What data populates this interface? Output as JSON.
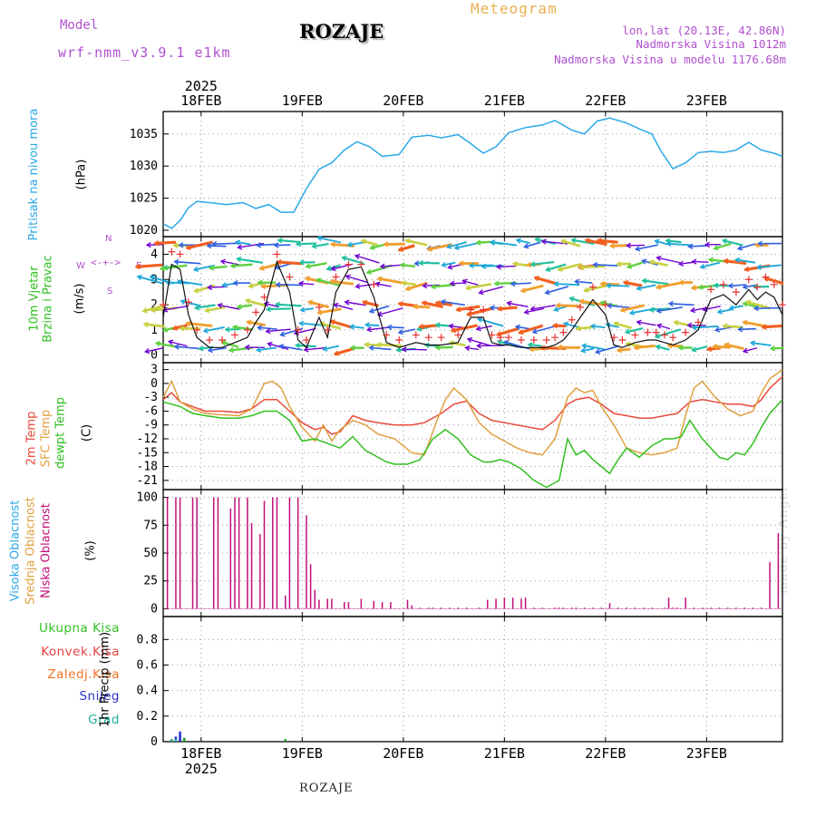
{
  "header": {
    "model_label": "Model",
    "model_run": "wrf-nmm_v3.9.1 e1km",
    "station_title": "ROZAJE",
    "product": "Meteogram",
    "coords": "lon,lat (20.13E, 42.86N)",
    "elevation": "Nadmorska Visina 1012m",
    "model_elevation": "Nadmorska Visina u modelu 1176.68m"
  },
  "footer": {
    "station": "ROZAJE",
    "credit": "made by Angel"
  },
  "colors": {
    "pressure": "#2aa8e8",
    "wind_speed": "#111111",
    "gust": "#e83030",
    "temp_2m": "#e84a3a",
    "temp_sfc": "#e0a040",
    "dewpoint": "#30c020",
    "cloud_high": "#2aa8e8",
    "cloud_mid": "#e0a040",
    "cloud_low": "#c0107a",
    "precip_total": "#20a020",
    "precip_conv": "#e03030",
    "precip_frz": "#f07020",
    "snow": "#3030d0",
    "graupel": "#20b0a0"
  },
  "chart_data": [
    {
      "type": "line",
      "panel": "pressure",
      "time_axis": {
        "year": "2025",
        "day_labels": [
          "18FEB",
          "19FEB",
          "20FEB",
          "21FEB",
          "22FEB",
          "23FEB"
        ],
        "day_start_hours": [
          9,
          33,
          57,
          81,
          105,
          129
        ],
        "hours_range": [
          0,
          147
        ]
      },
      "ylabels": [
        "Pritisak na nivou mora",
        "(hPa)"
      ],
      "yticks": [
        "1020",
        "1025",
        "1030",
        "1035"
      ],
      "ylim": [
        1019,
        1038.5
      ],
      "series": [
        {
          "key": "pressure",
          "hours": [
            0,
            2,
            4,
            6,
            8,
            11,
            15,
            19,
            22,
            25,
            28,
            31,
            34,
            37,
            40,
            43,
            46,
            49,
            52,
            56,
            59,
            63,
            66,
            70,
            73,
            76,
            79,
            82,
            86,
            90,
            93,
            97,
            100,
            103,
            106,
            110,
            113,
            116,
            118,
            121,
            124,
            127,
            130,
            133,
            136,
            139,
            142,
            145,
            147
          ],
          "values": [
            1021,
            1020.3,
            1021.5,
            1023.5,
            1024.5,
            1024.3,
            1024,
            1024.3,
            1023.4,
            1024,
            1022.8,
            1022.8,
            1026.5,
            1029.5,
            1030.5,
            1032.5,
            1033.8,
            1033,
            1031.5,
            1031.8,
            1034.5,
            1034.8,
            1034.4,
            1034.9,
            1033.5,
            1032,
            1033,
            1035.2,
            1036,
            1036.4,
            1037.1,
            1035.6,
            1035,
            1037,
            1037.5,
            1036.7,
            1035.8,
            1035,
            1032.5,
            1029.6,
            1030.5,
            1032.1,
            1032.3,
            1032.1,
            1032.5,
            1033.7,
            1032.5,
            1032,
            1031.5
          ]
        }
      ]
    },
    {
      "type": "line",
      "panel": "wind",
      "ylabels": [
        "10m Vjetar",
        "Brzina i Pravac",
        "(m/s)"
      ],
      "compass": [
        "N",
        "W",
        "E",
        "S"
      ],
      "yticks": [
        "0",
        "1",
        "2",
        "3",
        "4"
      ],
      "ylim": [
        -0.3,
        4.7
      ],
      "series": [
        {
          "key": "wind_speed",
          "hours": [
            0,
            2,
            4,
            6,
            8,
            11,
            14,
            17,
            20,
            22,
            24,
            27,
            30,
            32,
            34,
            37,
            39,
            41,
            44,
            47,
            50,
            53,
            56,
            60,
            63,
            66,
            70,
            73,
            76,
            78,
            80,
            82,
            85,
            88,
            91,
            93,
            95,
            97,
            99,
            102,
            105,
            107,
            109,
            112,
            115,
            117,
            119,
            121,
            124,
            127,
            130,
            133,
            136,
            139,
            141,
            143,
            145,
            147
          ],
          "values": [
            1.5,
            3.6,
            3.4,
            1.6,
            0.7,
            0.3,
            0.3,
            0.5,
            0.7,
            1.3,
            1.8,
            3.7,
            2.5,
            0.6,
            0.3,
            1.5,
            0.7,
            2.5,
            3.4,
            3.5,
            2.3,
            0.5,
            0.3,
            0.5,
            0.4,
            0.4,
            0.5,
            1.5,
            1.5,
            0.5,
            0.4,
            0.4,
            0.3,
            0.3,
            0.3,
            0.4,
            0.6,
            1.0,
            1.5,
            2.2,
            1.6,
            0.4,
            0.3,
            0.5,
            0.6,
            0.6,
            0.5,
            0.4,
            0.6,
            1.0,
            2.2,
            2.4,
            2.0,
            2.6,
            2.2,
            2.5,
            2.3,
            1.6
          ]
        },
        {
          "key": "gust",
          "hours": [
            0,
            2,
            4,
            6,
            8,
            11,
            14,
            17,
            20,
            22,
            24,
            27,
            30,
            32,
            34,
            37,
            39,
            41,
            44,
            47,
            50,
            53,
            56,
            60,
            63,
            66,
            70,
            73,
            76,
            78,
            80,
            82,
            85,
            88,
            91,
            93,
            95,
            97,
            99,
            102,
            105,
            107,
            109,
            112,
            115,
            117,
            119,
            121,
            124,
            127,
            130,
            133,
            136,
            139,
            141,
            143,
            145,
            147
          ],
          "values": [
            2.0,
            4.1,
            4.0,
            2.1,
            1.0,
            0.6,
            0.6,
            0.8,
            1.0,
            1.7,
            2.3,
            4.0,
            3.1,
            1.0,
            0.6,
            1.9,
            1.0,
            3.1,
            3.6,
            3.6,
            2.8,
            0.8,
            0.6,
            0.8,
            0.7,
            0.7,
            0.8,
            1.8,
            1.8,
            0.8,
            0.7,
            0.7,
            0.6,
            0.6,
            0.6,
            0.7,
            0.9,
            1.4,
            1.9,
            2.7,
            2.0,
            0.7,
            0.6,
            0.8,
            0.9,
            0.9,
            0.8,
            0.7,
            0.9,
            1.3,
            2.6,
            2.8,
            2.5,
            3.0,
            2.7,
            3.1,
            2.8,
            2.0
          ]
        }
      ]
    },
    {
      "type": "line",
      "panel": "temperature",
      "ylabels": [
        "2m Temp",
        "SFC Temp",
        "dewpt Temp",
        "(C)"
      ],
      "yticks": [
        "-21",
        "-18",
        "-15",
        "-12",
        "-9",
        "-6",
        "-3",
        "0",
        "3"
      ],
      "ylim": [
        -23,
        4.5
      ],
      "series": [
        {
          "key": "temp_2m",
          "hours": [
            0,
            2,
            4,
            7,
            10,
            14,
            18,
            21,
            24,
            27,
            30,
            33,
            36,
            38,
            40,
            42,
            45,
            48,
            51,
            55,
            59,
            62,
            66,
            69,
            72,
            75,
            78,
            81,
            84,
            87,
            90,
            93,
            96,
            98,
            101,
            104,
            107,
            110,
            113,
            116,
            119,
            122,
            125,
            128,
            131,
            134,
            137,
            140,
            142,
            144,
            147
          ],
          "values": [
            -3.5,
            -2,
            -4,
            -5,
            -6,
            -6,
            -6.3,
            -5.5,
            -3.5,
            -3.5,
            -6,
            -8.5,
            -10,
            -9.5,
            -11,
            -10.5,
            -7,
            -8,
            -8.5,
            -9,
            -9,
            -8.5,
            -6.5,
            -4.5,
            -3.8,
            -6.5,
            -8,
            -8.5,
            -9,
            -9.5,
            -10,
            -8,
            -4.5,
            -3.5,
            -3,
            -4.5,
            -6.5,
            -7,
            -7.5,
            -7.5,
            -7,
            -6.5,
            -4,
            -3.5,
            -4,
            -4.5,
            -4.5,
            -5,
            -3.5,
            -1,
            1.5
          ]
        },
        {
          "key": "temp_sfc",
          "hours": [
            0,
            2,
            4,
            7,
            10,
            14,
            18,
            21,
            24,
            26,
            28,
            30,
            33,
            36,
            38,
            40,
            42,
            45,
            48,
            51,
            55,
            59,
            62,
            65,
            67,
            69,
            72,
            75,
            78,
            81,
            84,
            87,
            90,
            93,
            96,
            98,
            100,
            102,
            104,
            107,
            110,
            113,
            116,
            119,
            122,
            124,
            126,
            128,
            131,
            134,
            137,
            140,
            142,
            144,
            147
          ],
          "values": [
            -3,
            0.5,
            -4,
            -5.5,
            -6.5,
            -6.8,
            -7,
            -5.5,
            0,
            0.5,
            -1,
            -5,
            -9.5,
            -12.5,
            -9,
            -12.5,
            -10,
            -8,
            -9,
            -11,
            -12,
            -15,
            -15.5,
            -8,
            -3.5,
            -1,
            -3.5,
            -8.5,
            -11,
            -12.5,
            -14,
            -15,
            -15.5,
            -12,
            -3,
            -1,
            -2,
            -1.5,
            -5,
            -9,
            -14,
            -15,
            -15.5,
            -15,
            -14,
            -7,
            -1,
            0.5,
            -3,
            -5.5,
            -7,
            -6,
            -2,
            1,
            3
          ]
        },
        {
          "key": "dewpoint",
          "hours": [
            0,
            2,
            4,
            7,
            10,
            14,
            18,
            21,
            24,
            27,
            30,
            33,
            36,
            39,
            42,
            45,
            48,
            51,
            53,
            55,
            58,
            61,
            64,
            67,
            70,
            73,
            76,
            78,
            80,
            82,
            85,
            88,
            91,
            94,
            96,
            98,
            100,
            102,
            104,
            106,
            108,
            110,
            113,
            116,
            119,
            121,
            123,
            125,
            128,
            130,
            132,
            134,
            136,
            138,
            140,
            142,
            144,
            147
          ],
          "values": [
            -4,
            -4.5,
            -5,
            -6.5,
            -7,
            -7.5,
            -7.5,
            -7,
            -6,
            -6,
            -8,
            -12.5,
            -12,
            -13,
            -14,
            -11.5,
            -14.5,
            -16,
            -17,
            -17.5,
            -17.5,
            -16.5,
            -12,
            -10,
            -12,
            -15.5,
            -17,
            -17,
            -16.5,
            -17,
            -18.5,
            -21,
            -22.5,
            -21,
            -12,
            -15.5,
            -14.5,
            -16.5,
            -18,
            -19.5,
            -16.5,
            -14,
            -16,
            -13.5,
            -12,
            -12,
            -11.5,
            -8,
            -12,
            -14,
            -16,
            -16.5,
            -15,
            -15.5,
            -13,
            -9.5,
            -6.5,
            -3.5
          ]
        }
      ]
    },
    {
      "type": "bar",
      "panel": "cloud",
      "ylabels": [
        "Visoka Oblacnost",
        "Srednja Oblacnost",
        "Niska Oblacnost",
        "(%)"
      ],
      "yticks": [
        "0",
        "25",
        "50",
        "75",
        "100"
      ],
      "ylim": [
        -7,
        107
      ],
      "series": [
        {
          "key": "cloud_low",
          "hours": [
            1,
            3,
            4,
            5,
            7,
            8,
            10,
            12,
            13,
            14,
            16,
            17,
            18,
            20,
            21,
            23,
            24,
            26,
            27,
            29,
            30,
            32,
            34,
            35,
            36,
            37,
            38,
            39,
            40,
            41,
            43,
            44,
            46,
            47,
            50,
            52,
            54,
            56,
            58,
            59,
            61,
            63,
            64,
            66,
            68,
            70,
            72,
            75,
            77,
            79,
            81,
            83,
            85,
            86,
            88,
            90,
            93,
            94,
            95,
            97,
            98,
            100,
            102,
            104,
            106,
            108,
            110,
            112,
            114,
            116,
            119,
            120,
            121,
            122,
            124,
            126,
            128,
            130,
            132,
            134,
            136,
            138,
            140,
            142,
            144,
            146
          ],
          "values": [
            100,
            100,
            100,
            0,
            100,
            100,
            0,
            100,
            100,
            0,
            90,
            100,
            100,
            100,
            77,
            67,
            97,
            100,
            100,
            12,
            100,
            100,
            84,
            40,
            17,
            8,
            0,
            9,
            9,
            0,
            6,
            6,
            0,
            9,
            7,
            6,
            6,
            0,
            8,
            3,
            1,
            1,
            1,
            1,
            1,
            1,
            1,
            1,
            8,
            9,
            10,
            10,
            9,
            10,
            1,
            1,
            1,
            1,
            1,
            1,
            1,
            1,
            1,
            1,
            5,
            1,
            1,
            1,
            1,
            1,
            1,
            10,
            1,
            1,
            10,
            1,
            1,
            1,
            1,
            1,
            1,
            1,
            1,
            1,
            42,
            68
          ]
        }
      ]
    },
    {
      "type": "bar",
      "panel": "precip",
      "ylabels": [
        "1hr Precip (mm)"
      ],
      "legend": [
        "Ukupna Kisa",
        "Konvek.Kisa",
        "Zaledj.Kisa",
        "Snijeg",
        "Grad"
      ],
      "yticks": [
        "0",
        "0.2",
        "0.4",
        "0.6",
        "0.8"
      ],
      "ylim": [
        0,
        0.98
      ],
      "series": [
        {
          "key": "precip_total",
          "hours": [
            2,
            4,
            5,
            29
          ],
          "values": [
            0.02,
            0.05,
            0.03,
            0.02
          ]
        },
        {
          "key": "snow",
          "hours": [
            3,
            4
          ],
          "values": [
            0.04,
            0.08
          ]
        },
        {
          "key": "graupel",
          "hours": [
            2,
            3
          ],
          "values": [
            0.01,
            0.02
          ]
        }
      ]
    }
  ]
}
